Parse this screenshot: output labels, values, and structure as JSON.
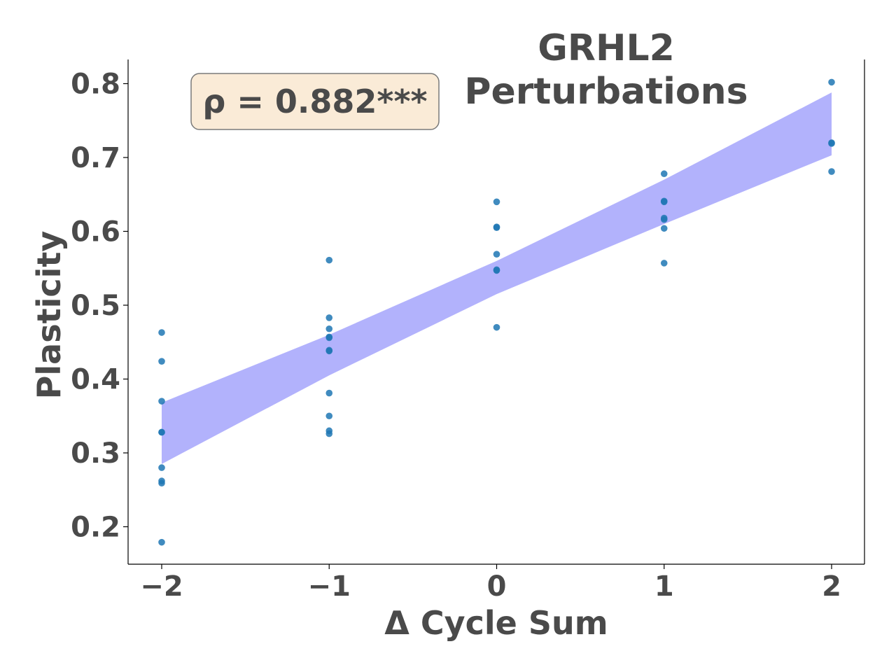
{
  "chart_data": {
    "type": "scatter",
    "title_lines": [
      "GRHL2",
      "Perturbations"
    ],
    "xlabel": "Δ Cycle Sum",
    "ylabel": "Plasticity",
    "xlim": [
      -2.2,
      2.2
    ],
    "ylim": [
      0.15,
      0.835
    ],
    "x_ticks": [
      -2,
      -1,
      0,
      1,
      2
    ],
    "x_tick_labels": [
      "−2",
      "−1",
      "0",
      "1",
      "2"
    ],
    "y_ticks": [
      0.2,
      0.3,
      0.4,
      0.5,
      0.6,
      0.7,
      0.8
    ],
    "y_tick_labels": [
      "0.2",
      "0.3",
      "0.4",
      "0.5",
      "0.6",
      "0.7",
      "0.8"
    ],
    "grid": false,
    "annotation": "ρ = 0.882***",
    "point_color": "#1f77b4",
    "band_color": "#b2b2fc",
    "annotation_fill": "#faebd7",
    "annotation_border": "#7a7a7a",
    "text_color": "#4a4a4a",
    "points": [
      {
        "x": -2,
        "y": 0.463
      },
      {
        "x": -2,
        "y": 0.424
      },
      {
        "x": -2,
        "y": 0.37
      },
      {
        "x": -2,
        "y": 0.328
      },
      {
        "x": -2,
        "y": 0.328
      },
      {
        "x": -2,
        "y": 0.28
      },
      {
        "x": -2,
        "y": 0.262
      },
      {
        "x": -2,
        "y": 0.259
      },
      {
        "x": -2,
        "y": 0.179
      },
      {
        "x": -1,
        "y": 0.561
      },
      {
        "x": -1,
        "y": 0.483
      },
      {
        "x": -1,
        "y": 0.468
      },
      {
        "x": -1,
        "y": 0.457
      },
      {
        "x": -1,
        "y": 0.456
      },
      {
        "x": -1,
        "y": 0.439
      },
      {
        "x": -1,
        "y": 0.438
      },
      {
        "x": -1,
        "y": 0.381
      },
      {
        "x": -1,
        "y": 0.35
      },
      {
        "x": -1,
        "y": 0.33
      },
      {
        "x": -1,
        "y": 0.326
      },
      {
        "x": 0,
        "y": 0.64
      },
      {
        "x": 0,
        "y": 0.606
      },
      {
        "x": 0,
        "y": 0.605
      },
      {
        "x": 0,
        "y": 0.569
      },
      {
        "x": 0,
        "y": 0.548
      },
      {
        "x": 0,
        "y": 0.547
      },
      {
        "x": 0,
        "y": 0.47
      },
      {
        "x": 1,
        "y": 0.678
      },
      {
        "x": 1,
        "y": 0.641
      },
      {
        "x": 1,
        "y": 0.64
      },
      {
        "x": 1,
        "y": 0.618
      },
      {
        "x": 1,
        "y": 0.616
      },
      {
        "x": 1,
        "y": 0.604
      },
      {
        "x": 1,
        "y": 0.557
      },
      {
        "x": 2,
        "y": 0.802
      },
      {
        "x": 2,
        "y": 0.72
      },
      {
        "x": 2,
        "y": 0.719
      },
      {
        "x": 2,
        "y": 0.681
      }
    ],
    "confidence_band": {
      "x": [
        -2,
        -1,
        0,
        1,
        2
      ],
      "upper": [
        0.368,
        0.46,
        0.56,
        0.67,
        0.788
      ],
      "lower": [
        0.285,
        0.405,
        0.515,
        0.61,
        0.703
      ]
    }
  }
}
